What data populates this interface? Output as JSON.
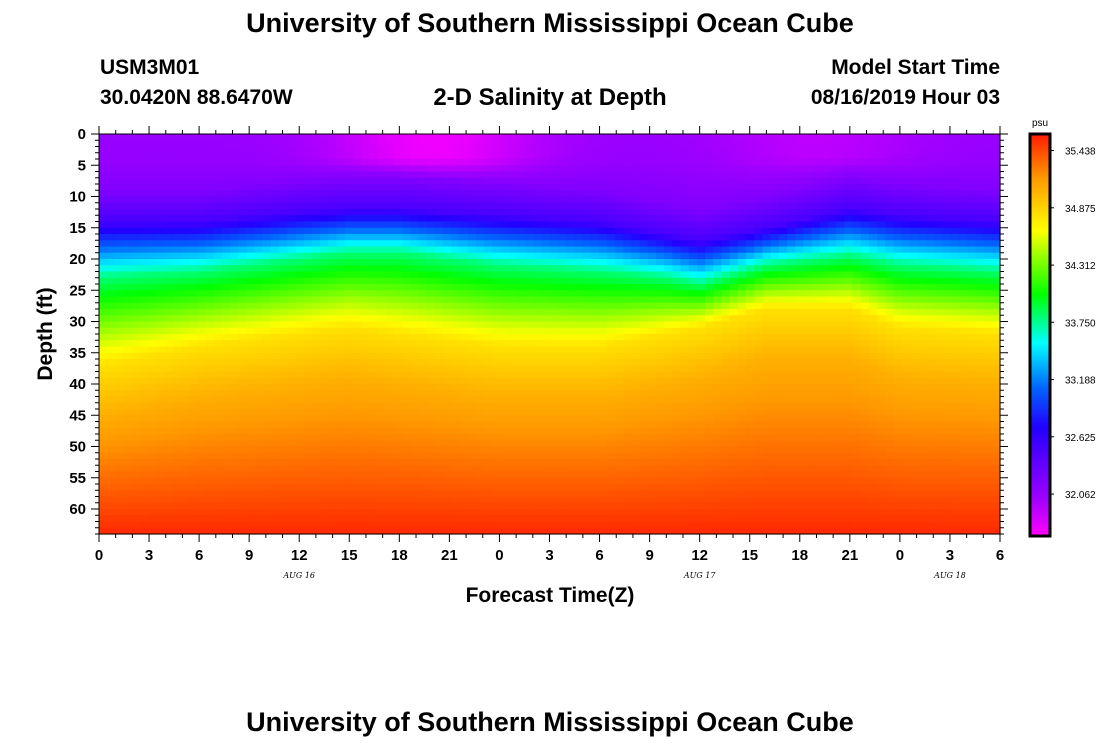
{
  "header": {
    "title": "University of Southern Mississippi Ocean Cube",
    "station_id": "USM3M01",
    "station_location": "30.0420N 88.6470W",
    "plot_title": "2-D Salinity at Depth",
    "model_start_label": "Model Start Time",
    "model_start_value": "08/16/2019 Hour 03"
  },
  "footer": {
    "title": "University of Southern Mississippi Ocean Cube"
  },
  "chart_data": {
    "type": "heatmap",
    "title": "2-D Salinity at Depth",
    "xlabel": "Forecast Time(Z)",
    "ylabel": "Depth (ft)",
    "x_ticks": [
      "0",
      "3",
      "6",
      "9",
      "12",
      "15",
      "18",
      "21",
      "0",
      "3",
      "6",
      "9",
      "12",
      "15",
      "18",
      "21",
      "0",
      "3",
      "6"
    ],
    "x_range_hours": [
      0,
      54
    ],
    "date_labels": [
      {
        "label": "AUG 16",
        "hour": 12
      },
      {
        "label": "AUG 17",
        "hour": 36
      },
      {
        "label": "AUG 18",
        "hour": 51
      }
    ],
    "y_ticks": [
      "0",
      "5",
      "10",
      "15",
      "20",
      "25",
      "30",
      "35",
      "40",
      "45",
      "50",
      "55",
      "60"
    ],
    "y_range_ft": [
      0,
      64
    ],
    "colorbar": {
      "unit": "psu",
      "ticks": [
        "35.438",
        "34.875",
        "34.312",
        "33.750",
        "33.188",
        "32.625",
        "32.062"
      ],
      "tick_values": [
        35.438,
        34.875,
        34.312,
        33.75,
        33.188,
        32.625,
        32.062
      ],
      "range": [
        31.65,
        35.6
      ]
    },
    "isoline_depths_ft": {
      "hours": [
        0,
        6,
        12,
        15,
        18,
        24,
        30,
        34,
        36,
        40,
        45,
        48,
        54
      ],
      "salinity_32_5": [
        14,
        14,
        12.5,
        12,
        12,
        13,
        14,
        16,
        17,
        15,
        12,
        13,
        14
      ],
      "salinity_33_8": [
        23,
        22,
        20,
        19,
        19,
        21,
        22,
        23,
        24,
        21,
        19.5,
        21,
        22
      ],
      "salinity_34_8": [
        37,
        34,
        32,
        31,
        32,
        34,
        34,
        32,
        31,
        28,
        28,
        31,
        32
      ]
    }
  }
}
